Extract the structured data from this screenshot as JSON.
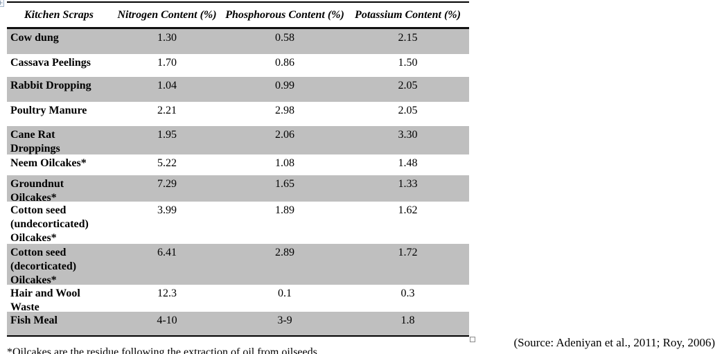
{
  "document": {
    "table": {
      "headers": [
        "Kitchen Scraps",
        "Nitrogen Content (%)",
        "Phosphorous Content (%)",
        "Potassium Content (%)"
      ],
      "rows": [
        {
          "label": "Cow dung",
          "values": [
            "1.30",
            "0.58",
            "2.15"
          ],
          "shaded": true
        },
        {
          "label": "Cassava Peelings",
          "values": [
            "1.70",
            "0.86",
            "1.50"
          ],
          "shaded": false
        },
        {
          "label": "Rabbit Dropping",
          "values": [
            "1.04",
            "0.99",
            "2.05"
          ],
          "shaded": true
        },
        {
          "label": "Poultry Manure",
          "values": [
            "2.21",
            "2.98",
            "2.05"
          ],
          "shaded": false
        },
        {
          "label": "Cane Rat\nDroppings",
          "values": [
            "1.95",
            "2.06",
            "3.30"
          ],
          "shaded": true
        },
        {
          "label": "Neem Oilcakes*",
          "values": [
            "5.22",
            "1.08",
            "1.48"
          ],
          "shaded": false
        },
        {
          "label": "Groundnut\nOilcakes*",
          "values": [
            "7.29",
            "1.65",
            "1.33"
          ],
          "shaded": true
        },
        {
          "label": "Cotton seed\n(undecorticated)\nOilcakes*",
          "values": [
            "3.99",
            "1.89",
            "1.62"
          ],
          "shaded": false
        },
        {
          "label": "Cotton seed\n(decorticated)\nOilcakes*",
          "values": [
            "6.41",
            "2.89",
            "1.72"
          ],
          "shaded": true
        },
        {
          "label": "Hair and Wool\nWaste",
          "values": [
            "12.3",
            "0.1",
            "0.3"
          ],
          "shaded": false
        },
        {
          "label": "Fish Meal",
          "values": [
            "4-10",
            "3-9",
            "1.8"
          ],
          "shaded": true
        }
      ],
      "shade_color": "#bfbfbf"
    },
    "footnote": "*Oilcakes are the residue following the extraction of oil from oilseeds",
    "source_citation": "(Source: Adeniyan et al., 2011; Roy, 2006)",
    "icons": {
      "table_move_handle": "+",
      "table_resize_handle": "open-square"
    }
  }
}
